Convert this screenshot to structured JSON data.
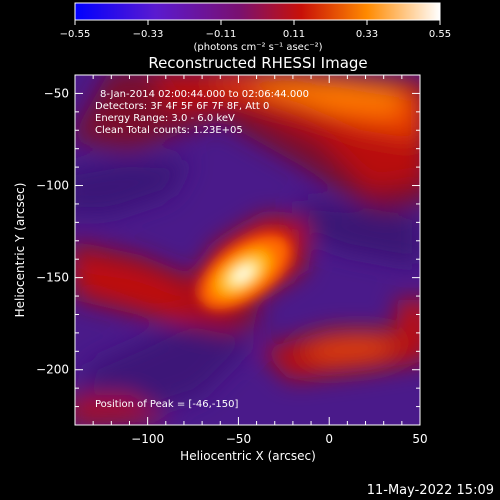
{
  "colorbar": {
    "ticks": [
      "-0.55",
      "-0.33",
      "-0.11",
      "0.11",
      "0.33",
      "0.55"
    ],
    "unit_label": "(photons cm⁻² s⁻¹ asec⁻²)",
    "range": [
      -0.55,
      0.55
    ]
  },
  "chart_data": {
    "type": "heatmap",
    "title": "Reconstructed RHESSI Image",
    "xlabel": "Heliocentric X (arcsec)",
    "ylabel": "Heliocentric Y (arcsec)",
    "xlim": [
      -140,
      50
    ],
    "ylim": [
      -230,
      -40
    ],
    "x_ticks": [
      -100,
      -50,
      0,
      50
    ],
    "y_ticks": [
      -50,
      -100,
      -150,
      -200
    ],
    "x_tick_labels": [
      "−100",
      "−50",
      "0",
      "50"
    ],
    "y_tick_labels": [
      "−50",
      "−100",
      "−150",
      "−200"
    ],
    "peak": [
      -46,
      -150
    ],
    "annotations": [
      "8-Jan-2014 02:00:44.000 to 02:06:44.000",
      "Detectors: 3F 4F 5F 6F 7F 8F, Att 0",
      "Energy Range: 3.0 - 6.0 keV",
      "Clean    Total counts: 1.23E+05"
    ],
    "peak_label": "Position of Peak = [-46,-150]"
  },
  "date_stamp": "11-May-2022 15:09"
}
